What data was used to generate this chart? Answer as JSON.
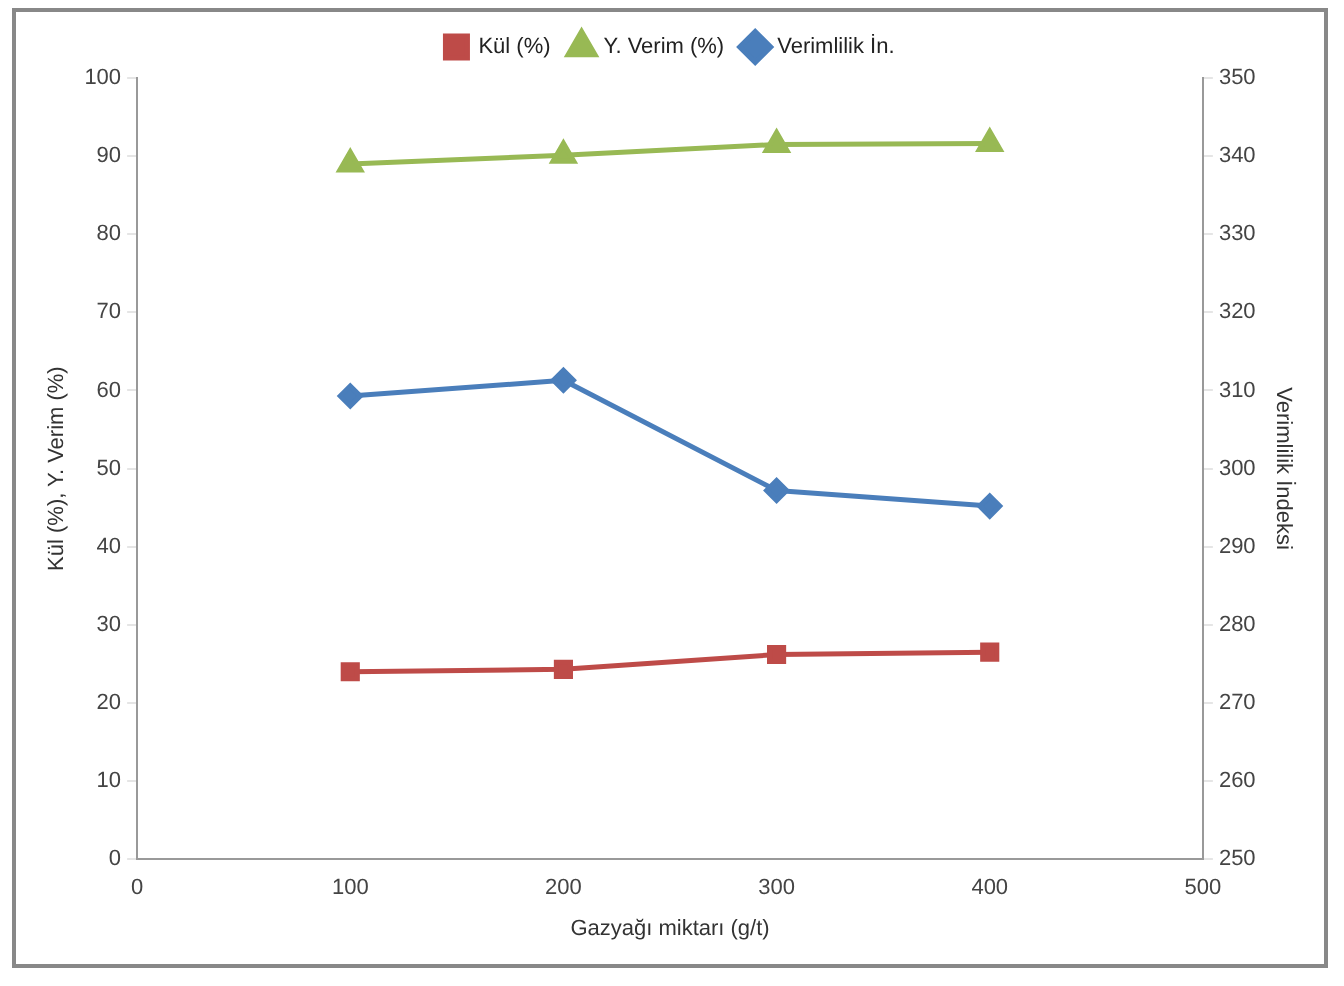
{
  "chart_data": {
    "type": "line",
    "xlabel": "Gazyağı miktarı (g/t)",
    "ylabel": "Kül (%), Y. Verim (%)",
    "y2label": "Verimlilik İndeksi",
    "x": [
      100,
      200,
      300,
      400
    ],
    "xlim": [
      0,
      500
    ],
    "xticks": [
      0,
      100,
      200,
      300,
      400,
      500
    ],
    "ylim": [
      0,
      100
    ],
    "yticks": [
      0,
      10,
      20,
      30,
      40,
      50,
      60,
      70,
      80,
      90,
      100
    ],
    "y2lim": [
      250,
      350
    ],
    "y2ticks": [
      250,
      260,
      270,
      280,
      290,
      300,
      310,
      320,
      330,
      340,
      350
    ],
    "grid": false,
    "legend": "top",
    "series": [
      {
        "name": "Kül (%)",
        "color": "#be4b48",
        "marker": "square",
        "values": [
          24,
          24.3,
          26.2,
          26.5
        ]
      },
      {
        "name": "Y. Verim (%)",
        "color": "#98b954",
        "marker": "triangle",
        "values": [
          89,
          90.1,
          91.5,
          91.6
        ]
      },
      {
        "name": "Verimlilik İn.",
        "color": "#4a7ebb",
        "marker": "diamond",
        "axis": "y2",
        "values": [
          309.3,
          311.3,
          297.2,
          295.2
        ]
      }
    ]
  }
}
